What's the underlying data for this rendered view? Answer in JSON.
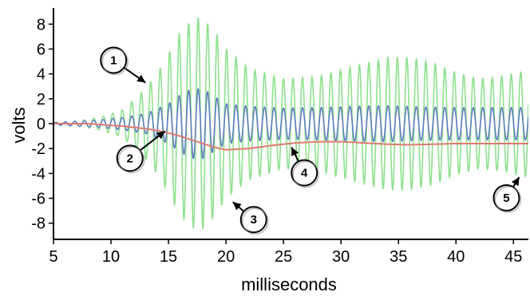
{
  "chart_data": {
    "type": "line",
    "xlabel": "milliseconds",
    "ylabel": "volts",
    "xlim": [
      5,
      46.3
    ],
    "ylim": [
      -9.3,
      9.3
    ],
    "xticks": [
      5,
      10,
      15,
      20,
      25,
      30,
      35,
      40,
      45
    ],
    "yticks": [
      8,
      6,
      4,
      2,
      0,
      -2,
      -4,
      -6,
      -8
    ],
    "grid": false,
    "oscillation_period_ms": 0.825,
    "series": [
      {
        "color": "#8ee08e",
        "style": "oscillation",
        "envelope_x": [
          5,
          7,
          9,
          11,
          13,
          14,
          15,
          16,
          17,
          17.8,
          19,
          20,
          22,
          25,
          28,
          31,
          34,
          36,
          38,
          40,
          42,
          44,
          46.3
        ],
        "envelope_amplitude": [
          0.1,
          0.2,
          0.5,
          1.1,
          2.8,
          4.0,
          5.6,
          7.3,
          8.3,
          8.6,
          7.5,
          6.0,
          4.5,
          3.6,
          3.8,
          4.6,
          5.3,
          5.3,
          4.9,
          4.1,
          3.6,
          3.8,
          4.3
        ]
      },
      {
        "color": "#5b78c4",
        "style": "oscillation",
        "envelope_x": [
          5,
          7,
          9,
          11,
          13,
          15,
          16,
          17,
          18,
          19,
          20,
          22,
          25,
          28,
          31,
          34,
          37,
          40,
          43,
          46.3
        ],
        "envelope_amplitude": [
          0.1,
          0.2,
          0.3,
          0.5,
          0.8,
          1.6,
          2.3,
          2.8,
          2.8,
          2.2,
          1.6,
          1.4,
          1.25,
          1.3,
          1.4,
          1.45,
          1.35,
          1.3,
          1.3,
          1.3
        ]
      },
      {
        "color": "#e07a6e",
        "style": "smooth",
        "x": [
          5,
          8,
          11,
          13,
          14,
          15,
          16,
          17,
          18,
          19,
          20,
          22,
          24,
          26,
          28,
          30,
          32,
          34,
          36,
          38,
          40,
          42,
          44,
          46.3
        ],
        "y": [
          0.0,
          0.0,
          -0.2,
          -0.4,
          -0.55,
          -0.75,
          -1.0,
          -1.3,
          -1.6,
          -1.9,
          -2.1,
          -2.0,
          -1.75,
          -1.55,
          -1.45,
          -1.45,
          -1.55,
          -1.65,
          -1.7,
          -1.65,
          -1.6,
          -1.6,
          -1.6,
          -1.6
        ]
      }
    ],
    "callouts": [
      {
        "label": "1",
        "text_x": 13.0,
        "text_y": 3.3
      },
      {
        "label": "2",
        "text_x": 14.7,
        "text_y": -0.6
      },
      {
        "label": "3",
        "text_x": 20.6,
        "text_y": -6.3
      },
      {
        "label": "4",
        "text_x": 25.7,
        "text_y": -1.9
      },
      {
        "label": "5",
        "text_x": 45.5,
        "text_y": -4.3
      }
    ]
  }
}
